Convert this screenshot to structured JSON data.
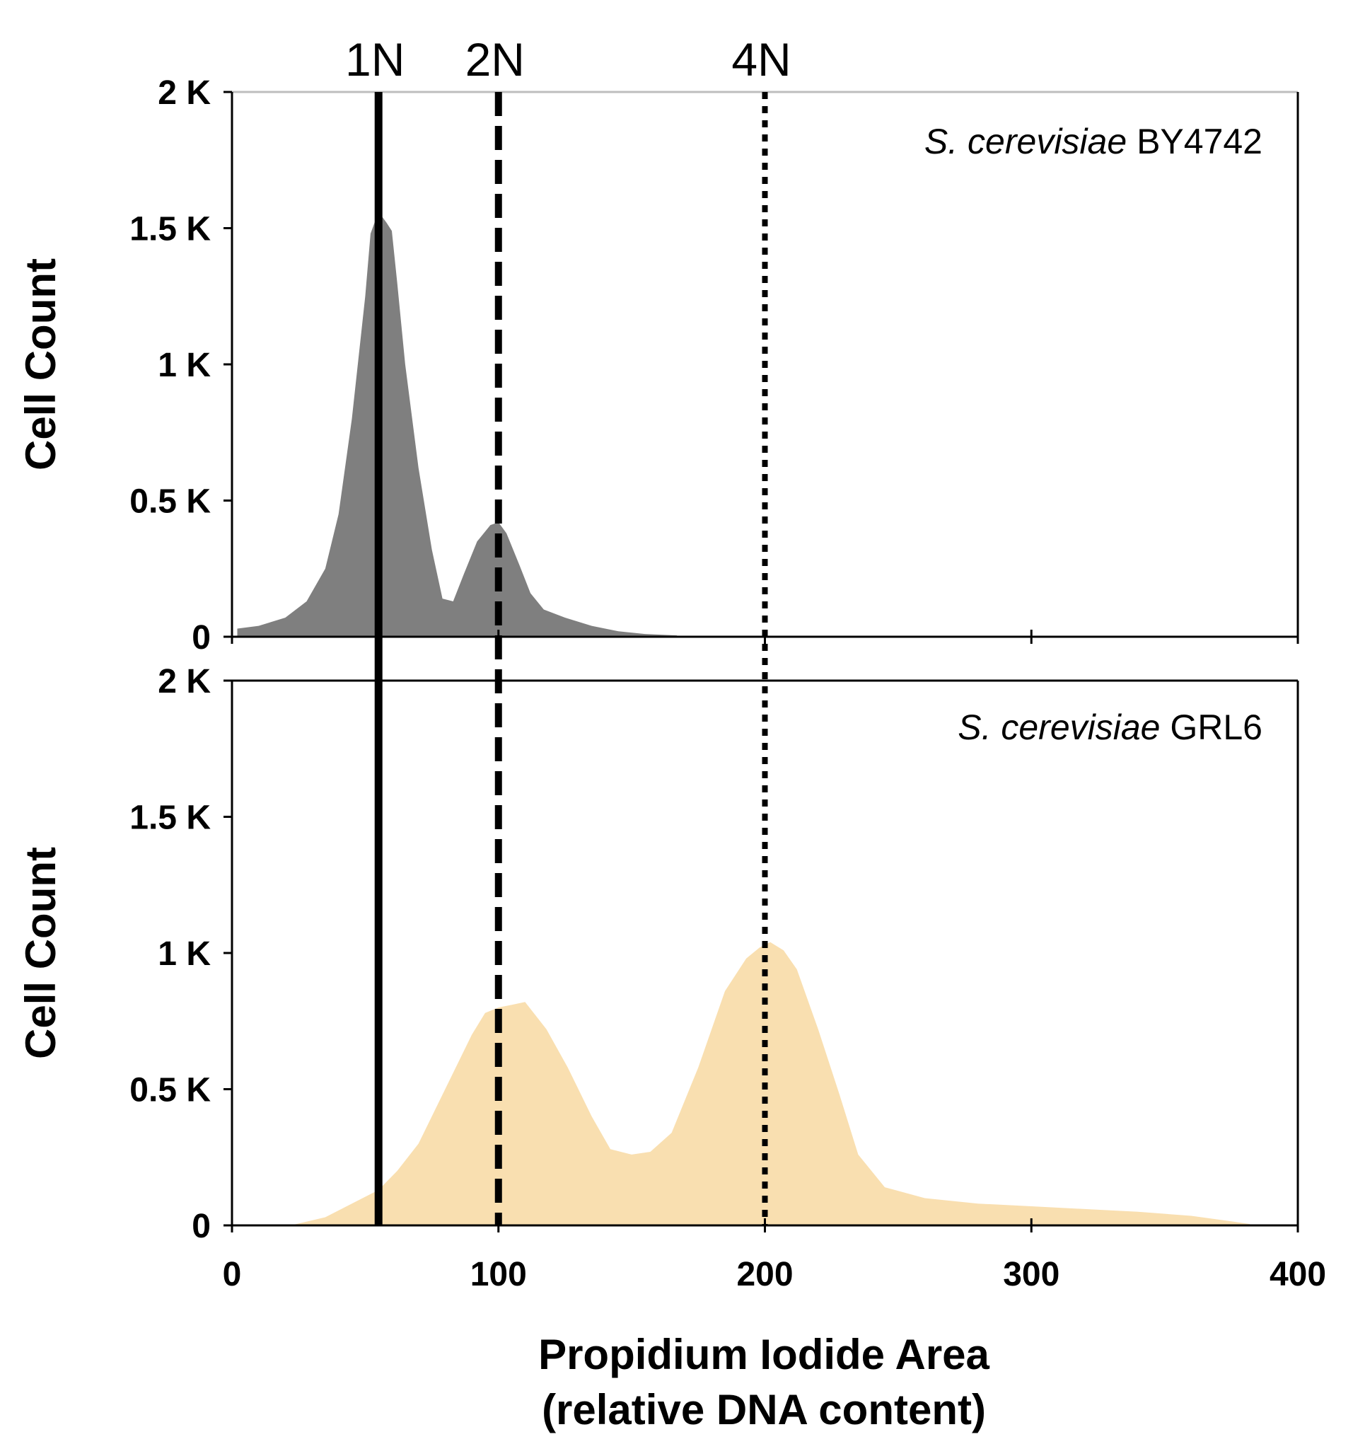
{
  "chart_data": {
    "type": "area",
    "title": "",
    "xlabel": "Propidium Iodide Area",
    "xlabel_line2": "(relative DNA content)",
    "xlim": [
      0,
      400
    ],
    "xticks": [
      0,
      100,
      200,
      300,
      400
    ],
    "xtick_labels": [
      "0",
      "100",
      "200",
      "300",
      "400"
    ],
    "shared_x_axis": true,
    "reference_lines": [
      {
        "label": "1N",
        "x": 55,
        "style": "solid"
      },
      {
        "label": "2N",
        "x": 100,
        "style": "dashed"
      },
      {
        "label": "4N",
        "x": 200,
        "style": "dotted"
      }
    ],
    "panels": [
      {
        "strain_label": {
          "italic": "S. cerevisiae",
          "plain": "BY4742"
        },
        "ylabel": "Cell Count",
        "ylim": [
          0,
          2000
        ],
        "yticks": [
          0,
          500,
          1000,
          1500,
          2000
        ],
        "ytick_labels": [
          "0",
          "0.5 K",
          "1 K",
          "1.5 K",
          "2 K"
        ],
        "fill_color": "#7f7f7f",
        "series": {
          "name": "BY4742",
          "x": [
            2,
            10,
            20,
            28,
            35,
            40,
            45,
            50,
            52,
            55,
            58,
            60,
            62,
            65,
            70,
            75,
            79,
            83,
            87,
            92,
            97,
            100,
            103,
            108,
            112,
            117,
            125,
            135,
            145,
            155,
            167
          ],
          "y": [
            30,
            40,
            70,
            130,
            250,
            450,
            800,
            1250,
            1480,
            1560,
            1520,
            1490,
            1300,
            1000,
            620,
            320,
            140,
            130,
            230,
            350,
            410,
            420,
            380,
            260,
            160,
            100,
            70,
            40,
            20,
            10,
            5
          ]
        }
      },
      {
        "strain_label": {
          "italic": "S. cerevisiae",
          "plain": "GRL6"
        },
        "ylabel": "Cell Count",
        "ylim": [
          0,
          2000
        ],
        "yticks": [
          0,
          500,
          1000,
          1500,
          2000
        ],
        "ytick_labels": [
          "0",
          "0.5 K",
          "1 K",
          "1.5 K",
          "2 K"
        ],
        "fill_color": "#f9dfb0",
        "series": {
          "name": "GRL6",
          "x": [
            22,
            35,
            45,
            55,
            62,
            70,
            80,
            90,
            95,
            100,
            105,
            110,
            118,
            126,
            135,
            142,
            150,
            157,
            165,
            175,
            185,
            193,
            198,
            202,
            207,
            212,
            220,
            228,
            235,
            245,
            260,
            280,
            300,
            320,
            340,
            360,
            375,
            382
          ],
          "y": [
            0,
            30,
            80,
            130,
            200,
            300,
            500,
            700,
            780,
            800,
            810,
            820,
            720,
            580,
            400,
            280,
            260,
            270,
            340,
            580,
            860,
            980,
            1020,
            1040,
            1010,
            940,
            720,
            480,
            260,
            140,
            100,
            80,
            70,
            60,
            50,
            35,
            15,
            5
          ]
        }
      }
    ]
  }
}
